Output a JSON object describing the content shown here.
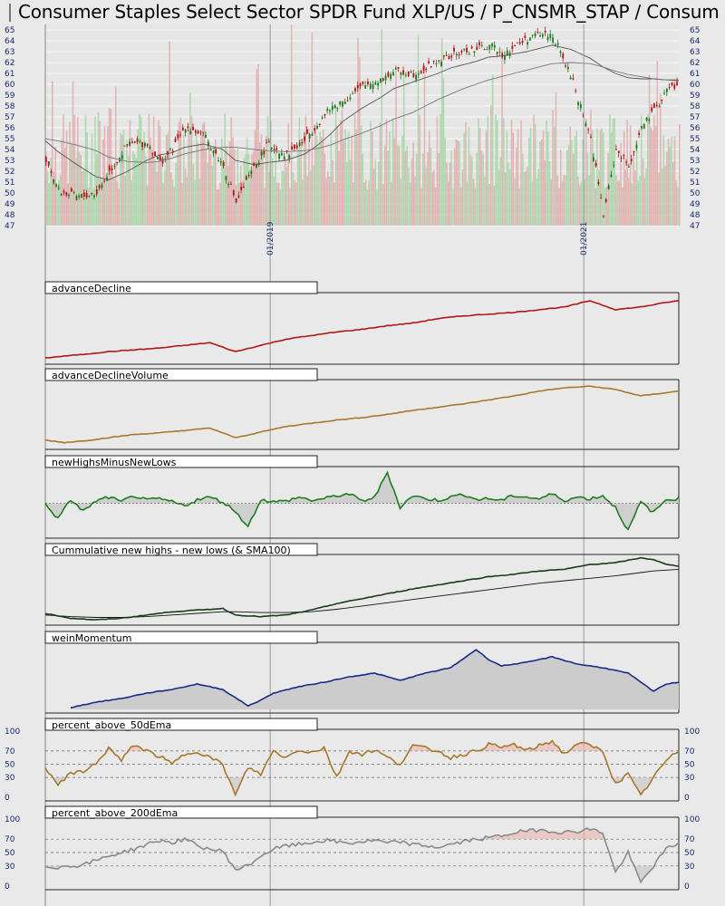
{
  "title": "Consumer Staples Select Sector SPDR Fund XLP/US / P_CNSMR_STAP / Consum",
  "chart_data": [
    {
      "type": "candlestick",
      "title": "Consumer Staples Select Sector SPDR Fund XLP/US / P_CNSMR_STAP / Consum",
      "y_ticks": [
        47,
        48,
        49,
        50,
        51,
        52,
        53,
        54,
        55,
        56,
        57,
        58,
        59,
        60,
        61,
        62,
        63,
        64,
        65
      ],
      "ylim": [
        47,
        65.5
      ],
      "x_labels": [
        "01/2019",
        "01/2021"
      ],
      "x": [
        0,
        2,
        5,
        8,
        10,
        13,
        16,
        18,
        20,
        22,
        25,
        28,
        30,
        33,
        35,
        38,
        41,
        43,
        45,
        47,
        50,
        53,
        55,
        58,
        60,
        62,
        64,
        66,
        68,
        70,
        72,
        74,
        76,
        78,
        80,
        83,
        86,
        88,
        90,
        92,
        94,
        96,
        98,
        100
      ],
      "close": [
        53.2,
        50.2,
        49.6,
        50.0,
        52.0,
        54.5,
        54.6,
        52.8,
        54.0,
        56.2,
        55.2,
        52.5,
        49.2,
        52.5,
        54.5,
        53.5,
        55.0,
        56.5,
        57.8,
        58.5,
        59.8,
        60.5,
        61.2,
        61.0,
        61.5,
        62.2,
        62.6,
        63.0,
        63.2,
        63.6,
        62.8,
        63.5,
        64.2,
        64.6,
        64.5,
        60.5,
        55.0,
        48.0,
        54.0,
        52.5,
        56.0,
        57.5,
        59.5,
        60.0
      ],
      "sma_fast": [
        54.8,
        53.8,
        52.6,
        51.5,
        51.2,
        52.0,
        53.0,
        53.5,
        53.7,
        54.2,
        54.5,
        54.0,
        53.0,
        52.6,
        52.8,
        53.0,
        53.6,
        54.4,
        55.4,
        56.6,
        57.8,
        58.8,
        59.6,
        60.2,
        60.6,
        61.0,
        61.5,
        61.8,
        62.1,
        62.5,
        62.6,
        62.8,
        63.0,
        63.3,
        63.6,
        63.2,
        62.4,
        61.6,
        61.0,
        60.6,
        60.5,
        60.5,
        60.4,
        60.4
      ],
      "sma_slow": [
        55.0,
        54.8,
        54.4,
        53.9,
        53.3,
        52.9,
        52.8,
        52.9,
        53.2,
        53.6,
        54.0,
        54.2,
        54.2,
        54.0,
        53.9,
        53.8,
        53.9,
        54.1,
        54.4,
        54.9,
        55.5,
        56.2,
        56.8,
        57.4,
        58.0,
        58.6,
        59.1,
        59.6,
        60.0,
        60.4,
        60.7,
        61.0,
        61.3,
        61.6,
        61.9,
        62.0,
        61.9,
        61.6,
        61.2,
        60.9,
        60.7,
        60.5,
        60.4,
        60.3
      ]
    },
    {
      "type": "line",
      "title": "advanceDecline",
      "x": [
        0,
        3,
        6,
        10,
        14,
        18,
        22,
        26,
        30,
        34,
        38,
        42,
        46,
        50,
        54,
        58,
        62,
        66,
        70,
        74,
        78,
        82,
        86,
        90,
        94,
        98,
        100
      ],
      "values": [
        1,
        3,
        5,
        8,
        10,
        12,
        15,
        18,
        8,
        15,
        22,
        26,
        30,
        33,
        37,
        40,
        45,
        48,
        50,
        52,
        55,
        58,
        65,
        55,
        58,
        63,
        65
      ],
      "ylim": [
        -2,
        72
      ],
      "color": "#b01818"
    },
    {
      "type": "line",
      "title": "advanceDeclineVolume",
      "x": [
        0,
        3,
        6,
        10,
        14,
        18,
        22,
        26,
        30,
        34,
        38,
        42,
        46,
        50,
        54,
        58,
        62,
        66,
        70,
        74,
        78,
        82,
        86,
        90,
        94,
        98,
        100
      ],
      "values": [
        5,
        2,
        4,
        8,
        12,
        14,
        17,
        20,
        8,
        15,
        22,
        26,
        30,
        33,
        37,
        42,
        46,
        50,
        55,
        60,
        66,
        70,
        72,
        68,
        60,
        64,
        66
      ],
      "ylim": [
        -2,
        78
      ],
      "color": "#a8782a"
    },
    {
      "type": "area",
      "title": "newHighsMinusNewLows",
      "x": [
        0,
        2,
        4,
        6,
        8,
        10,
        12,
        14,
        16,
        18,
        20,
        22,
        24,
        26,
        28,
        30,
        32,
        34,
        36,
        38,
        40,
        42,
        44,
        46,
        48,
        50,
        52,
        54,
        56,
        58,
        60,
        62,
        64,
        66,
        68,
        70,
        72,
        74,
        76,
        78,
        80,
        82,
        84,
        86,
        88,
        90,
        92,
        94,
        96,
        98,
        100
      ],
      "values": [
        0,
        -20,
        5,
        -10,
        3,
        8,
        2,
        10,
        4,
        6,
        2,
        -3,
        5,
        8,
        2,
        -10,
        -30,
        5,
        2,
        3,
        8,
        4,
        6,
        10,
        12,
        3,
        8,
        40,
        -5,
        10,
        6,
        4,
        8,
        12,
        5,
        6,
        4,
        10,
        8,
        6,
        12,
        4,
        8,
        6,
        10,
        -5,
        -35,
        2,
        -12,
        5,
        6
      ],
      "baseline": 0,
      "ylim": [
        -40,
        45
      ],
      "color": "#1e7d1e"
    },
    {
      "type": "line",
      "title": "Cummulative new highs - new lows (& SMA100)",
      "x": [
        0,
        4,
        8,
        12,
        16,
        20,
        24,
        28,
        30,
        34,
        38,
        42,
        46,
        50,
        54,
        58,
        62,
        66,
        70,
        74,
        78,
        82,
        86,
        90,
        94,
        96,
        98,
        100
      ],
      "values": [
        10,
        4,
        2,
        4,
        8,
        12,
        14,
        16,
        8,
        6,
        8,
        14,
        22,
        28,
        34,
        40,
        45,
        50,
        55,
        58,
        62,
        64,
        70,
        72,
        78,
        76,
        70,
        68
      ],
      "sma": [
        8,
        6,
        5,
        5,
        6,
        8,
        10,
        12,
        12,
        11,
        11,
        12,
        15,
        19,
        23,
        27,
        31,
        35,
        39,
        43,
        47,
        50,
        53,
        56,
        60,
        62,
        63,
        64
      ],
      "ylim": [
        0,
        80
      ],
      "color": "#1a3a1a"
    },
    {
      "type": "area",
      "title": "weinMomentum",
      "x": [
        4,
        8,
        12,
        16,
        20,
        24,
        28,
        32,
        34,
        36,
        40,
        44,
        48,
        52,
        56,
        60,
        64,
        68,
        70,
        72,
        76,
        80,
        84,
        88,
        92,
        96,
        98,
        100
      ],
      "values": [
        2,
        8,
        12,
        18,
        22,
        28,
        22,
        4,
        10,
        18,
        25,
        30,
        36,
        40,
        32,
        40,
        46,
        66,
        55,
        48,
        52,
        58,
        50,
        46,
        40,
        20,
        28,
        30
      ],
      "ylim": [
        0,
        72
      ],
      "color": "#1a2a8a"
    },
    {
      "type": "line",
      "title": "percent_above_50dEma",
      "y_ticks": [
        0,
        30,
        50,
        70,
        100
      ],
      "x": [
        0,
        2,
        4,
        6,
        8,
        10,
        12,
        14,
        16,
        18,
        20,
        22,
        24,
        26,
        28,
        30,
        32,
        34,
        36,
        38,
        40,
        42,
        44,
        46,
        48,
        50,
        52,
        54,
        56,
        58,
        60,
        62,
        64,
        66,
        68,
        70,
        72,
        74,
        76,
        78,
        80,
        82,
        84,
        86,
        88,
        90,
        92,
        94,
        96,
        98,
        100
      ],
      "values": [
        45,
        20,
        35,
        40,
        50,
        75,
        55,
        80,
        70,
        62,
        50,
        65,
        70,
        60,
        50,
        3,
        45,
        35,
        70,
        60,
        72,
        68,
        75,
        30,
        70,
        65,
        72,
        60,
        50,
        78,
        74,
        70,
        60,
        65,
        70,
        80,
        75,
        80,
        70,
        78,
        85,
        65,
        82,
        78,
        70,
        20,
        35,
        2,
        30,
        55,
        70
      ],
      "ylim": [
        0,
        100
      ],
      "color": "#a8782a"
    },
    {
      "type": "line",
      "title": "percent_above_200dEma",
      "y_ticks": [
        0,
        30,
        50,
        70,
        100
      ],
      "x": [
        0,
        2,
        4,
        6,
        8,
        10,
        12,
        14,
        16,
        18,
        20,
        22,
        24,
        26,
        28,
        30,
        32,
        34,
        36,
        38,
        40,
        42,
        44,
        46,
        48,
        50,
        52,
        54,
        56,
        58,
        60,
        62,
        64,
        66,
        68,
        70,
        72,
        74,
        76,
        78,
        80,
        82,
        84,
        86,
        88,
        90,
        92,
        94,
        96,
        98,
        100
      ],
      "values": [
        30,
        28,
        30,
        32,
        38,
        45,
        50,
        55,
        62,
        68,
        65,
        70,
        60,
        55,
        52,
        25,
        30,
        45,
        55,
        60,
        62,
        65,
        68,
        66,
        64,
        66,
        68,
        64,
        66,
        62,
        60,
        58,
        62,
        66,
        70,
        72,
        75,
        80,
        82,
        84,
        82,
        80,
        82,
        85,
        80,
        20,
        50,
        5,
        30,
        55,
        65
      ],
      "ylim": [
        0,
        100
      ],
      "color": "#8a8a8a"
    }
  ]
}
